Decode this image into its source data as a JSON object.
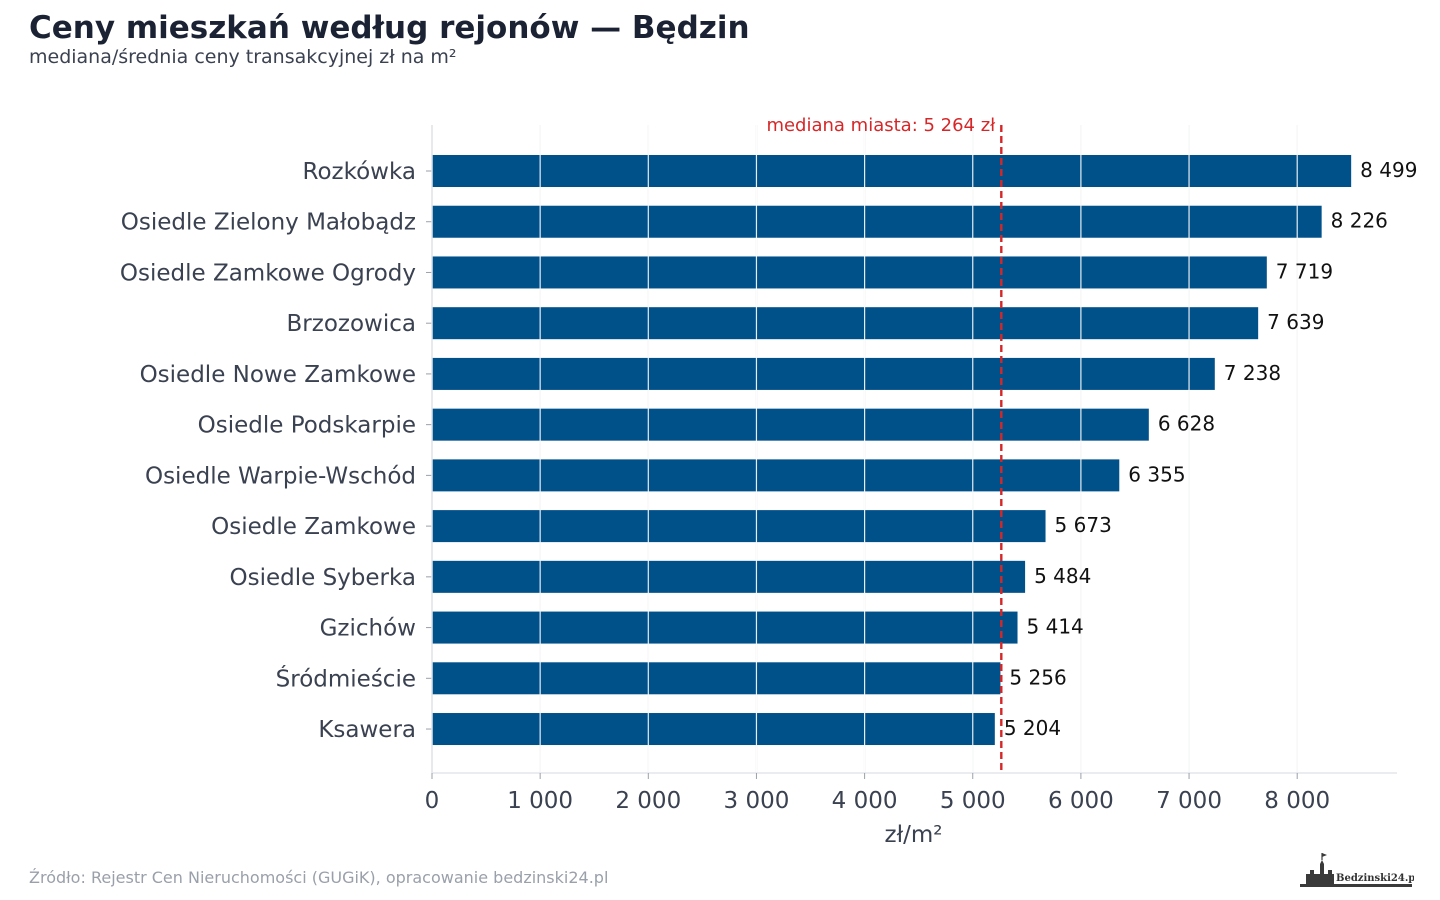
{
  "header": {
    "title": "Ceny mieszkań według rejonów — Będzin",
    "subtitle": "mediana/średnia ceny transakcyjnej zł na m²"
  },
  "footer": {
    "source": "Źródło: Rejestr Cen Nieruchomości (GUGiK), opracowanie bedzinski24.pl",
    "logo_text": "Bedzinski24.pl"
  },
  "colors": {
    "bar": "#00508a",
    "median": "#d62728",
    "grid": "#e4e6ea"
  },
  "chart_data": {
    "type": "bar",
    "orientation": "horizontal",
    "title": "Ceny mieszkań według rejonów — Będzin",
    "subtitle": "mediana/średnia ceny transakcyjnej zł na m²",
    "xlabel": "zł/m²",
    "ylabel": "",
    "xlim": [
      0,
      8900
    ],
    "xticks": [
      0,
      1000,
      2000,
      3000,
      4000,
      5000,
      6000,
      7000,
      8000
    ],
    "xtick_labels": [
      "0",
      "1 000",
      "2 000",
      "3 000",
      "4 000",
      "5 000",
      "6 000",
      "7 000",
      "8 000"
    ],
    "grid": "vertical",
    "categories": [
      "Rozkówka",
      "Osiedle Zielony Małobądz",
      "Osiedle Zamkowe Ogrody",
      "Brzozowica",
      "Osiedle Nowe Zamkowe",
      "Osiedle Podskarpie",
      "Osiedle Warpie-Wschód",
      "Osiedle Zamkowe",
      "Osiedle Syberka",
      "Gzichów",
      "Śródmieście",
      "Ksawera"
    ],
    "values": [
      8499,
      8226,
      7719,
      7639,
      7238,
      6628,
      6355,
      5673,
      5484,
      5414,
      5256,
      5204
    ],
    "value_labels": [
      "8 499",
      "8 226",
      "7 719",
      "7 639",
      "7 238",
      "6 628",
      "6 355",
      "5 673",
      "5 484",
      "5 414",
      "5 256",
      "5 204"
    ],
    "reference_line": {
      "value": 5264,
      "label": "mediana miasta: 5 264 zł"
    }
  }
}
